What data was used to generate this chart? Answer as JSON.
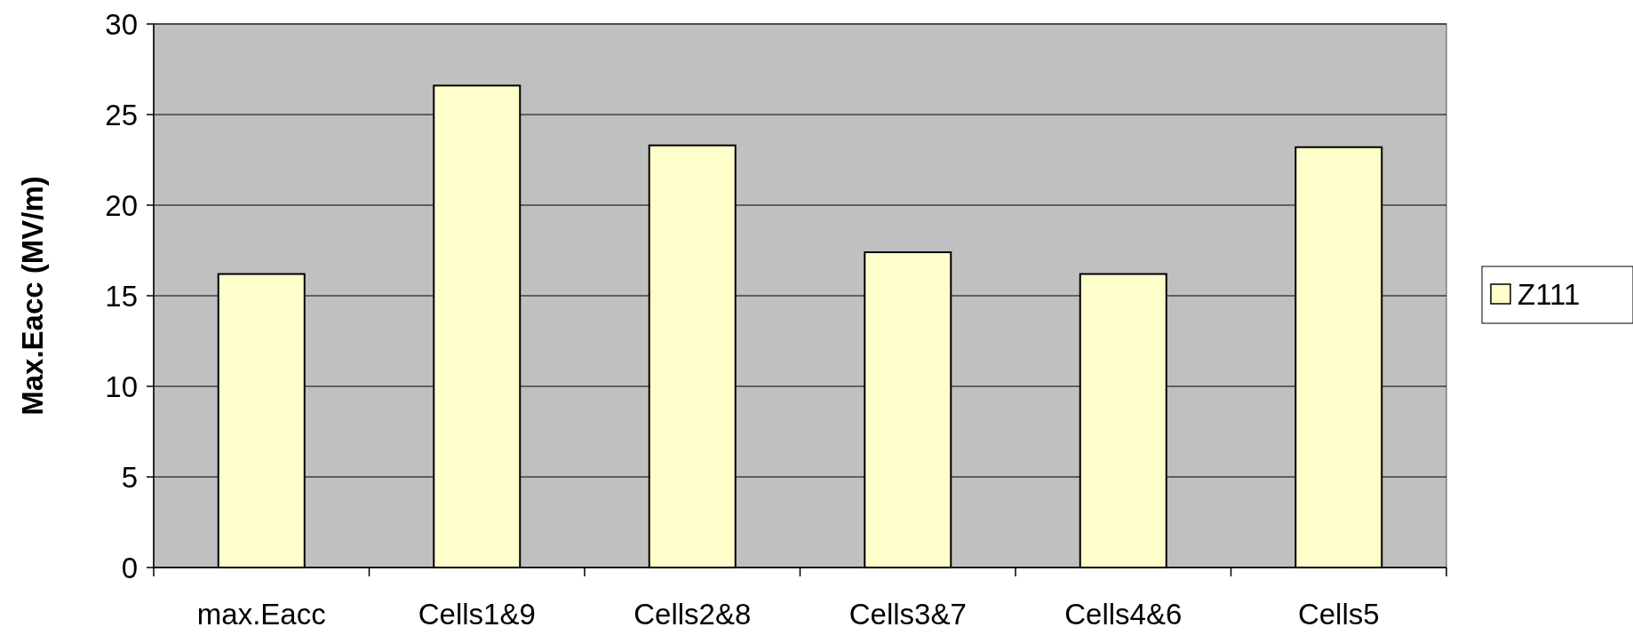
{
  "chart_data": {
    "type": "bar",
    "ylabel": "Max.Eacc (MV/m)",
    "categories": [
      "max.Eacc",
      "Cells1&9",
      "Cells2&8",
      "Cells3&7",
      "Cells4&6",
      "Cells5"
    ],
    "series": [
      {
        "name": "Z111",
        "color": "#ffffcc",
        "values": [
          16.2,
          26.6,
          23.3,
          17.4,
          16.2,
          23.2
        ]
      }
    ],
    "ylim": [
      0,
      30
    ],
    "yticks": [
      0,
      5,
      10,
      15,
      20,
      25,
      30
    ],
    "grid": "y",
    "legend": "right"
  }
}
